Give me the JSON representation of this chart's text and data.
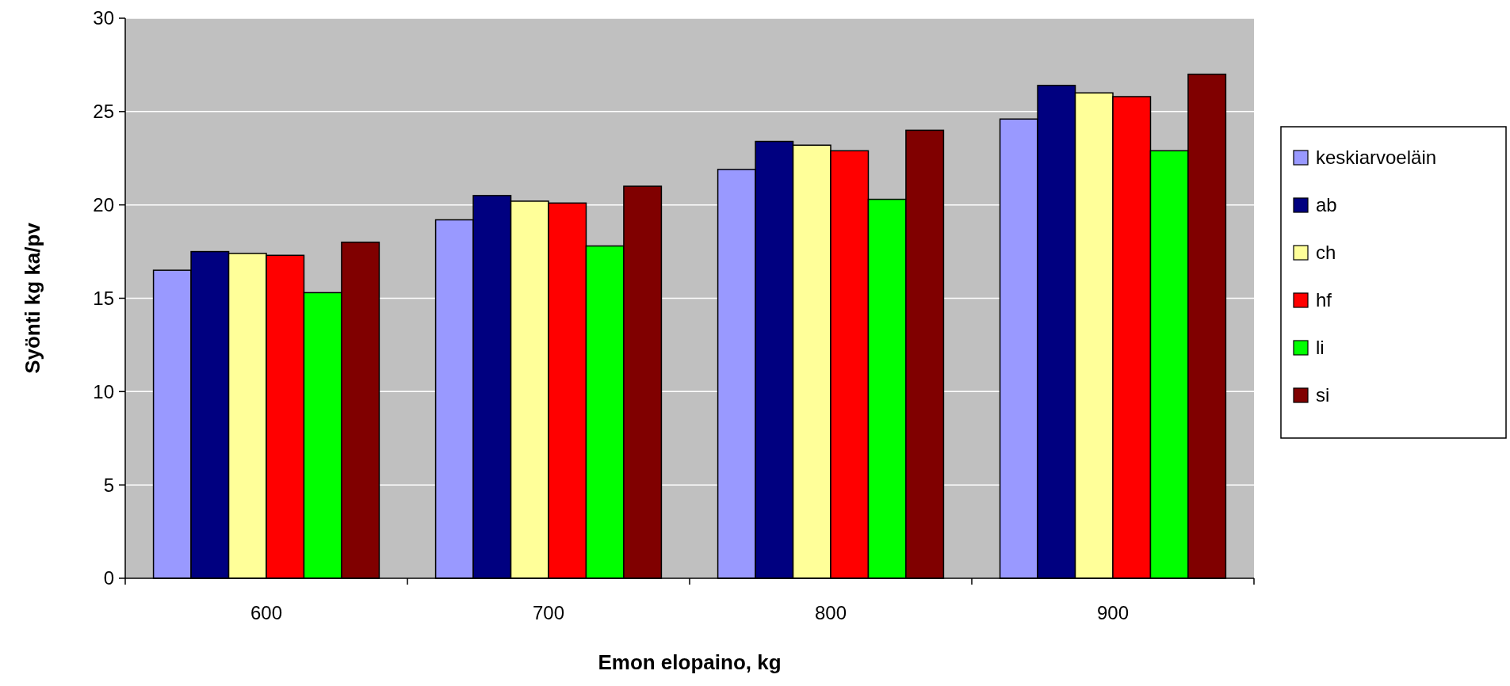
{
  "chart_data": {
    "type": "bar",
    "xlabel": "Emon elopaino, kg",
    "ylabel": "Syönti kg ka/pv",
    "categories": [
      "600",
      "700",
      "800",
      "900"
    ],
    "series": [
      {
        "name": "keskiarvoeläin",
        "color": "#9999ff",
        "values": [
          16.5,
          19.2,
          21.9,
          24.6
        ]
      },
      {
        "name": "ab",
        "color": "#000080",
        "values": [
          17.5,
          20.5,
          23.4,
          26.4
        ]
      },
      {
        "name": "ch",
        "color": "#ffff99",
        "values": [
          17.4,
          20.2,
          23.2,
          26.0
        ]
      },
      {
        "name": "hf",
        "color": "#ff0000",
        "values": [
          17.3,
          20.1,
          22.9,
          25.8
        ]
      },
      {
        "name": "li",
        "color": "#00ff00",
        "values": [
          15.3,
          17.8,
          20.3,
          22.9
        ]
      },
      {
        "name": "si",
        "color": "#800000",
        "values": [
          18.0,
          21.0,
          24.0,
          27.0
        ]
      }
    ],
    "ylim": [
      0,
      30
    ],
    "yticks": [
      0,
      5,
      10,
      15,
      20,
      25,
      30
    ],
    "grid": "y",
    "legend": "right"
  }
}
